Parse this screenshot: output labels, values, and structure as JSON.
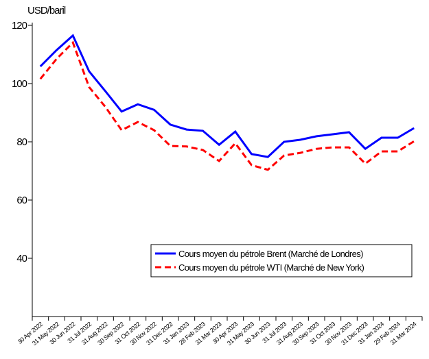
{
  "chart_data": {
    "type": "line",
    "y_label": "USD/baril",
    "categories": [
      "30 Apr 2022",
      "31 May 2022",
      "30 Jun 2022",
      "31 Jul 2022",
      "31 Aug 2022",
      "30 Sep 2022",
      "31 Oct 2022",
      "30 Nov 2022",
      "31 Dec 2022",
      "31 Jan 2023",
      "28 Feb 2023",
      "31 Mar 2023",
      "30 Apr 2023",
      "31 May 2023",
      "30 Jun 2023",
      "31 Jul 2023",
      "31 Aug 2023",
      "30 Sep 2023",
      "31 Oct 2023",
      "30 Nov 2023",
      "31 Dec 2023",
      "31 Jan 2024",
      "29 Feb 2024",
      "31 Mar 2024"
    ],
    "series": [
      {
        "name": "Cours moyen du pétrole Brent (Marché de Londres)",
        "color": "#0000ff",
        "dash": false,
        "values": [
          105.9,
          111.5,
          116.5,
          104.2,
          97.4,
          90.4,
          92.9,
          91,
          85.9,
          84.2,
          83.8,
          79,
          83.5,
          75.8,
          74.8,
          80,
          80.7,
          81.9,
          82.6,
          83.3,
          77.6,
          81.4,
          81.4,
          84.7
        ]
      },
      {
        "name": "Cours moyen du pétrole WTI (Marché de New York)",
        "color": "#ff0000",
        "dash": true,
        "values": [
          101.6,
          108.5,
          114.1,
          98.8,
          92,
          84,
          86.8,
          84,
          78.6,
          78.4,
          77.2,
          73.4,
          79.5,
          72,
          70.4,
          75.3,
          76.2,
          77.6,
          78.1,
          78.1,
          72.5,
          76.7,
          76.7,
          80.2
        ]
      }
    ],
    "ylim": [
      20,
      120
    ],
    "yticks": [
      40,
      60,
      80,
      100,
      120
    ]
  }
}
